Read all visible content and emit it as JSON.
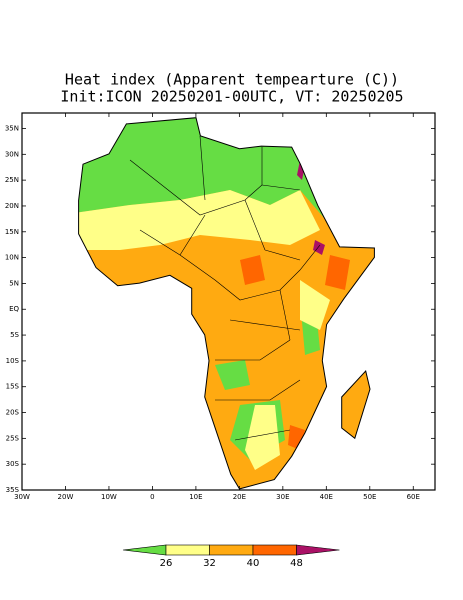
{
  "chart_data": {
    "type": "map",
    "title": "Heat index (Apparent tempearture (C))",
    "subtitle": "Init:ICON 20250201-00UTC, VT: 20250205",
    "xlim": [
      -30,
      65
    ],
    "ylim": [
      -35,
      38
    ],
    "xticks": [
      {
        "value": -30,
        "label": "30W"
      },
      {
        "value": -20,
        "label": "20W"
      },
      {
        "value": -10,
        "label": "10W"
      },
      0,
      {
        "value": 10,
        "label": "10E"
      },
      {
        "value": 20,
        "label": "20E"
      },
      {
        "value": 30,
        "label": "30E"
      },
      {
        "value": 40,
        "label": "40E"
      },
      {
        "value": 50,
        "label": "50E"
      },
      {
        "value": 60,
        "label": "60E"
      }
    ],
    "yticks": [
      {
        "value": 35,
        "label": "35N"
      },
      {
        "value": 30,
        "label": "30N"
      },
      {
        "value": 25,
        "label": "25N"
      },
      {
        "value": 20,
        "label": "20N"
      },
      {
        "value": 15,
        "label": "15N"
      },
      {
        "value": 10,
        "label": "10N"
      },
      {
        "value": 5,
        "label": "5N"
      },
      {
        "value": 0,
        "label": "EQ"
      },
      {
        "value": -5,
        "label": "5S"
      },
      {
        "value": -10,
        "label": "10S"
      },
      {
        "value": -15,
        "label": "15S"
      },
      {
        "value": -20,
        "label": "20S"
      },
      {
        "value": -25,
        "label": "25S"
      },
      {
        "value": -30,
        "label": "30S"
      },
      {
        "value": -35,
        "label": "35S"
      }
    ],
    "colorbar": {
      "levels": [
        26,
        32,
        40,
        48
      ],
      "colors": [
        "#66dd44",
        "#ffff88",
        "#ffaa11",
        "#ff6600",
        "#aa1166"
      ]
    }
  }
}
